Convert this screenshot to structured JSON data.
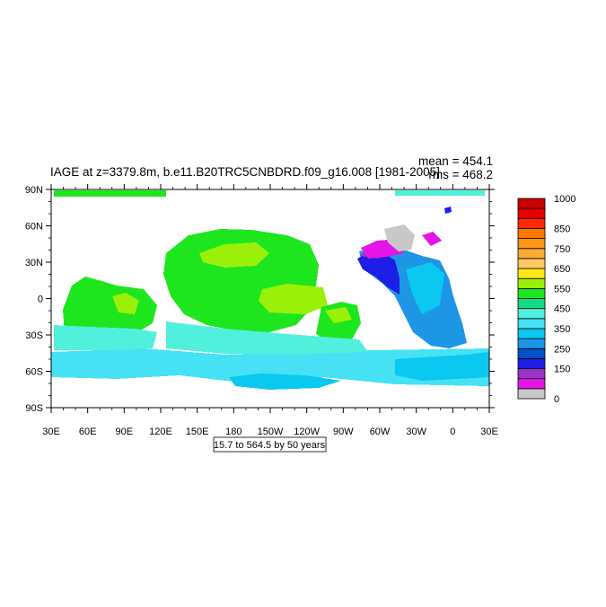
{
  "title": "IAGE at z=3379.8m, b.e11.B20TRC5CNBDRD.f09_g16.008 [1981-2005]",
  "stats": {
    "mean": "mean = 454.1",
    "rms": "rms = 468.2"
  },
  "range_note": "15.7 to 564.5 by 50 years",
  "lat_ticks": [
    "90N",
    "60N",
    "30N",
    "0",
    "30S",
    "60S",
    "90S"
  ],
  "lon_ticks": [
    "30E",
    "60E",
    "90E",
    "120E",
    "150E",
    "180",
    "150W",
    "120W",
    "90W",
    "60W",
    "30W",
    "0",
    "30E"
  ],
  "colorbar": {
    "colors": [
      "#c8c8c8",
      "#e614e6",
      "#9b32c8",
      "#1e1ee6",
      "#0050c8",
      "#1e96e6",
      "#0ac8f0",
      "#46e1f5",
      "#50f0dc",
      "#14dc82",
      "#1ee61e",
      "#9bf00a",
      "#ffe614",
      "#ffc864",
      "#ffaa32",
      "#ff9614",
      "#ff7800",
      "#ff2800",
      "#e60000",
      "#c80000"
    ],
    "labels": [
      {
        "value": 0,
        "text": "0"
      },
      {
        "value": 150,
        "text": "150"
      },
      {
        "value": 250,
        "text": "250"
      },
      {
        "value": 350,
        "text": "350"
      },
      {
        "value": 450,
        "text": "450"
      },
      {
        "value": 550,
        "text": "550"
      },
      {
        "value": 650,
        "text": "650"
      },
      {
        "value": 750,
        "text": "750"
      },
      {
        "value": 850,
        "text": "850"
      },
      {
        "value": 1000,
        "text": "1000"
      }
    ]
  }
}
